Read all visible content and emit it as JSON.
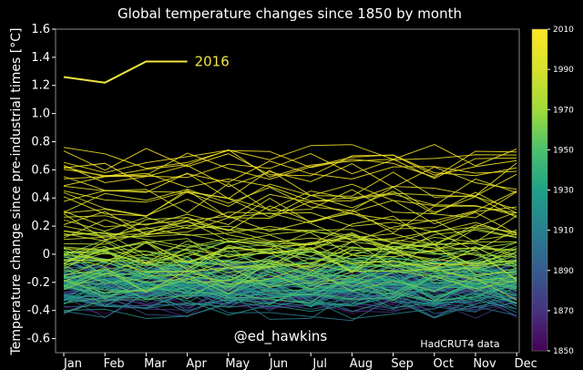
{
  "chart_data": {
    "type": "line",
    "title": "Global temperature changes since 1850 by month",
    "xlabel": "",
    "ylabel": "Temperature change since pre-industrial times [°C]",
    "categories": [
      "Jan",
      "Feb",
      "Mar",
      "Apr",
      "May",
      "Jun",
      "Jul",
      "Aug",
      "Sep",
      "Oct",
      "Nov",
      "Dec"
    ],
    "ylim": [
      -0.7,
      1.6
    ],
    "yticks": [
      "-0.6",
      "-0.4",
      "-0.2",
      "0",
      "0.2",
      "0.4",
      "0.6",
      "0.8",
      "1.0",
      "1.2",
      "1.4",
      "1.6"
    ],
    "series_years": [
      1850,
      2016
    ],
    "highlight": {
      "name": "2016",
      "color": "#f0e442",
      "values": [
        1.26,
        1.22,
        1.37,
        1.37
      ]
    },
    "colorbar": {
      "min": 1850,
      "max": 2010,
      "ticks": [
        "1850",
        "1870",
        "1890",
        "1910",
        "1930",
        "1950",
        "1970",
        "1990",
        "2010"
      ],
      "colormap": "viridis"
    },
    "annotation_handle": "@ed_hawkins",
    "source": "HadCRUT4 data",
    "colors": {
      "background": "#000000",
      "axes_bg": "#000000",
      "text": "#ffffff",
      "highlight": "#f0e442"
    }
  }
}
